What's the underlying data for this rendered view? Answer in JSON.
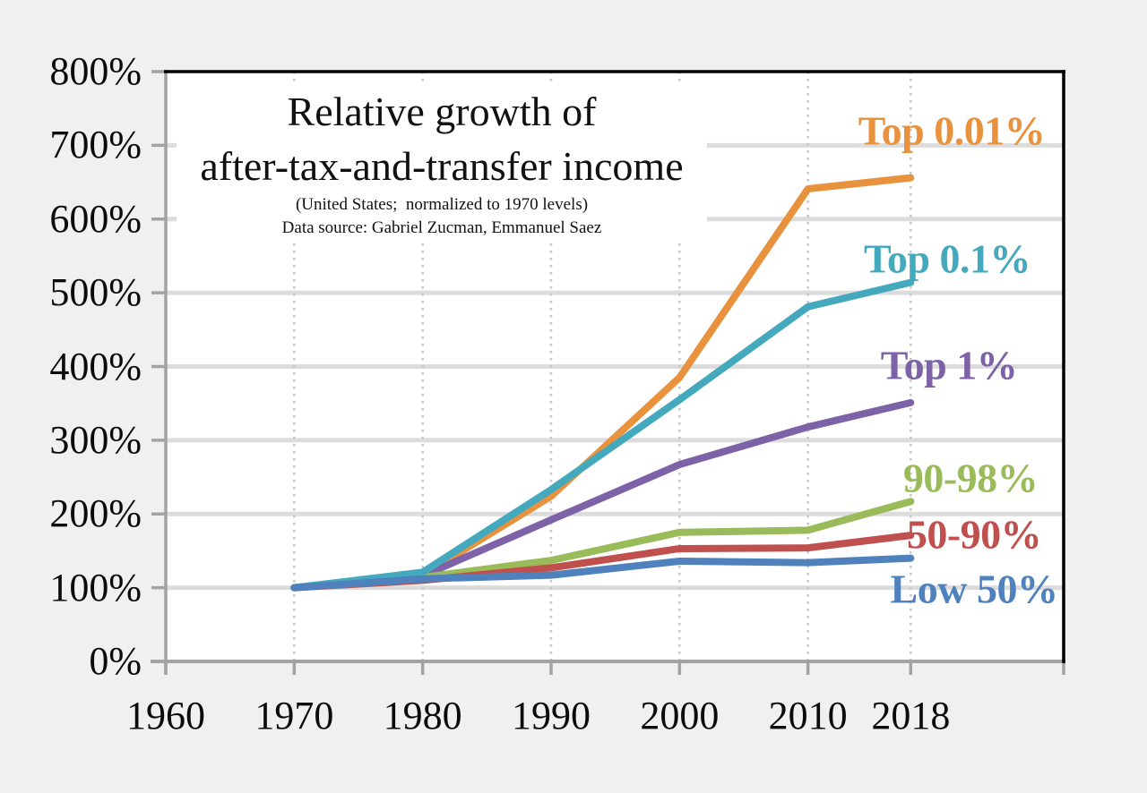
{
  "title": {
    "line1": "Relative growth of",
    "line2": "after-tax-and-transfer income",
    "subtitle": "(United States;  normalized to 1970 levels)",
    "source": "Data source: Gabriel Zucman, Emmanuel Saez"
  },
  "chart_data": {
    "type": "line",
    "title": "Relative growth of after-tax-and-transfer income",
    "subtitle": "(United States; normalized to 1970 levels)",
    "source": "Data source: Gabriel Zucman, Emmanuel Saez",
    "x": [
      1970,
      1980,
      1990,
      2000,
      2010,
      2018
    ],
    "x_tick_years": [
      1960,
      1970,
      1980,
      1990,
      2000,
      2010,
      2018
    ],
    "x_tick_labels": [
      "1960",
      "1970",
      "1980",
      "1990",
      "2000",
      "2010",
      "2018"
    ],
    "y_tick_values": [
      0,
      100,
      200,
      300,
      400,
      500,
      600,
      700,
      800
    ],
    "y_tick_labels": [
      "0%",
      "100%",
      "200%",
      "300%",
      "400%",
      "500%",
      "600%",
      "700%",
      "800%"
    ],
    "ylim": [
      0,
      800
    ],
    "xlim": [
      1960,
      2030
    ],
    "grid": {
      "horizontal": "solid",
      "vertical": "dotted"
    },
    "legend_position": "direct-labels-right",
    "series": [
      {
        "name": "Top 0.01%",
        "color": "#E8923E",
        "values": [
          100,
          117,
          224,
          385,
          641,
          656
        ]
      },
      {
        "name": "Top 0.1%",
        "color": "#45A9BE",
        "values": [
          100,
          121,
          233,
          355,
          481,
          514
        ]
      },
      {
        "name": "Top 1%",
        "color": "#7D62A7",
        "values": [
          100,
          116,
          192,
          267,
          318,
          351
        ]
      },
      {
        "name": "90-98%",
        "color": "#9ABB59",
        "values": [
          100,
          114,
          137,
          175,
          178,
          217
        ]
      },
      {
        "name": "50-90%",
        "color": "#C0504D",
        "values": [
          100,
          110,
          127,
          153,
          154,
          171
        ]
      },
      {
        "name": "Low 50%",
        "color": "#4F81BD",
        "values": [
          100,
          112,
          117,
          136,
          134,
          140
        ]
      }
    ]
  },
  "colors": {
    "background": "#f0f0f0",
    "plot_background": "#ffffff",
    "gridline": "#dcdcdc",
    "dotted_gridline": "#c6c6c6",
    "axis": "#a3a3a3",
    "frame": "#000000"
  }
}
